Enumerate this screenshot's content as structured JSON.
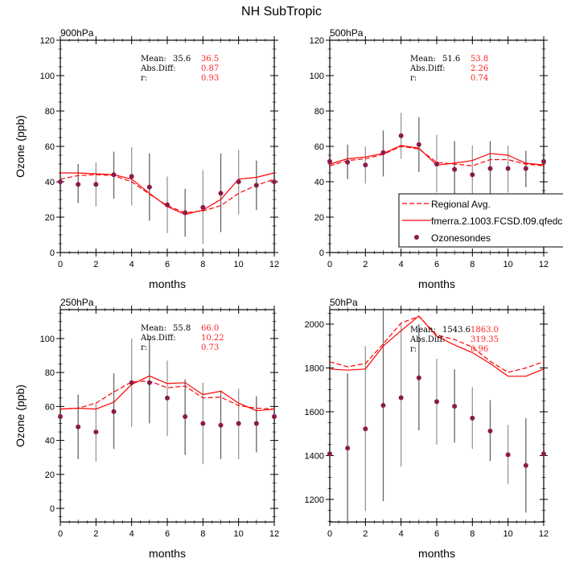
{
  "title": "NH SubTropic",
  "legend": {
    "entries": [
      "Regional Avg.",
      "fmerra.2.1003.FCSD.f09.qfedcmip",
      "Ozonesondes"
    ],
    "colors": {
      "regional": "#ff0000",
      "model": "#ff0000",
      "obs": "#8b1a4a",
      "errorbar": "#777777"
    }
  },
  "stats_labels": {
    "mean": "Mean:",
    "absdiff": "Abs.Diff:",
    "r": "r:"
  },
  "chart_data": [
    {
      "type": "line",
      "title": "900hPa",
      "xlabel": "months",
      "ylabel": "Ozone (ppb)",
      "xlim": [
        0,
        12
      ],
      "ylim": [
        0,
        120
      ],
      "yticks": [
        0,
        20,
        40,
        60,
        80,
        100,
        120
      ],
      "xticks": [
        0,
        2,
        4,
        6,
        8,
        10,
        12
      ],
      "x": [
        0,
        1,
        2,
        3,
        4,
        5,
        6,
        7,
        8,
        9,
        10,
        11,
        12
      ],
      "stats": {
        "mean_obs": "35.6",
        "mean_model": "36.5",
        "absdiff": "0.87",
        "r": "0.93"
      },
      "series": [
        {
          "name": "Regional Avg.",
          "style": "dashed",
          "values": [
            41.5,
            43.5,
            44,
            43.5,
            40,
            33,
            26.5,
            22.5,
            23.5,
            26.5,
            33.5,
            38,
            41.5
          ]
        },
        {
          "name": "fmerra.2.1003.FCSD.f09.qfedcmip",
          "style": "solid",
          "values": [
            45,
            45,
            44.5,
            44,
            41.5,
            33.5,
            26,
            21.5,
            24,
            30,
            41.5,
            42.5,
            45
          ]
        },
        {
          "name": "Ozonesondes",
          "style": "markers",
          "values": [
            40,
            38.5,
            38.5,
            44,
            43,
            37,
            27,
            22.5,
            25.5,
            33.5,
            40,
            38,
            40
          ],
          "err_low": [
            null,
            28,
            26,
            30.5,
            26.5,
            18,
            11,
            9,
            5,
            11.5,
            21.5,
            24,
            null
          ],
          "err_high": [
            null,
            50,
            51,
            57,
            59.5,
            56,
            43,
            36,
            46.5,
            56,
            58,
            52,
            null
          ]
        }
      ]
    },
    {
      "type": "line",
      "title": "500hPa",
      "xlabel": "months",
      "ylabel": "",
      "xlim": [
        0,
        12
      ],
      "ylim": [
        0,
        120
      ],
      "yticks": [
        0,
        20,
        40,
        60,
        80,
        100,
        120
      ],
      "xticks": [
        0,
        2,
        4,
        6,
        8,
        10,
        12
      ],
      "x": [
        0,
        1,
        2,
        3,
        4,
        5,
        6,
        7,
        8,
        9,
        10,
        11,
        12
      ],
      "stats": {
        "mean_obs": "51.6",
        "mean_model": "53.8",
        "absdiff": "2.26",
        "r": "0.74"
      },
      "series": [
        {
          "name": "Regional Avg.",
          "style": "dashed",
          "values": [
            49,
            52,
            53,
            55.5,
            60,
            58.5,
            51,
            50,
            49,
            52.5,
            52.5,
            50,
            49
          ]
        },
        {
          "name": "fmerra.2.1003.FCSD.f09.qfedcmip",
          "style": "solid",
          "values": [
            50,
            53,
            54,
            56,
            60.5,
            59,
            49.5,
            50.5,
            52,
            56,
            55,
            50.5,
            49.5
          ]
        },
        {
          "name": "Ozonesondes",
          "style": "markers",
          "values": [
            51.5,
            51,
            49.5,
            56.5,
            66,
            61,
            50,
            47,
            44,
            47.5,
            47.5,
            47.5,
            51.5
          ],
          "err_low": [
            null,
            41.5,
            39,
            43,
            53,
            45.5,
            34,
            30,
            30,
            32,
            34,
            37,
            null
          ],
          "err_high": [
            null,
            61,
            60,
            69,
            79,
            76.5,
            66.5,
            63,
            60.5,
            63,
            60.5,
            57.5,
            null
          ]
        }
      ]
    },
    {
      "type": "line",
      "title": "250hPa",
      "xlabel": "months",
      "ylabel": "Ozone (ppb)",
      "xlim": [
        0,
        12
      ],
      "ylim": [
        -8,
        117
      ],
      "yticks": [
        0,
        20,
        40,
        60,
        80,
        100
      ],
      "xticks": [
        0,
        2,
        4,
        6,
        8,
        10,
        12
      ],
      "x": [
        0,
        1,
        2,
        3,
        4,
        5,
        6,
        7,
        8,
        9,
        10,
        11,
        12
      ],
      "stats": {
        "mean_obs": "55.8",
        "mean_model": "66.0",
        "absdiff": "10.22",
        "r": "0.73"
      },
      "series": [
        {
          "name": "Regional Avg.",
          "style": "dashed",
          "values": [
            58.5,
            59,
            62,
            68.5,
            74.5,
            75,
            71,
            72,
            65,
            65.5,
            60.5,
            59,
            58.5
          ]
        },
        {
          "name": "fmerra.2.1003.FCSD.f09.qfedcmip",
          "style": "solid",
          "values": [
            58.5,
            59,
            58.5,
            62.5,
            73,
            78,
            73.5,
            74,
            67,
            69,
            62,
            57.5,
            58.5
          ]
        },
        {
          "name": "Ozonesondes",
          "style": "markers",
          "values": [
            54,
            48,
            45,
            57,
            74,
            74,
            65,
            54,
            50,
            49,
            50,
            50,
            54
          ],
          "err_low": [
            null,
            29,
            27.5,
            35,
            48,
            50,
            42.5,
            31.5,
            26,
            29,
            29,
            33,
            null
          ],
          "err_high": [
            null,
            67,
            62,
            79.5,
            100,
            100,
            87,
            76,
            74,
            69.5,
            70.5,
            66,
            null
          ]
        }
      ]
    },
    {
      "type": "line",
      "title": "50hPa",
      "xlabel": "months",
      "ylabel": "",
      "xlim": [
        0,
        12
      ],
      "ylim": [
        1097,
        2066
      ],
      "yticks": [
        1200,
        1400,
        1600,
        1800,
        2000
      ],
      "xticks": [
        0,
        2,
        4,
        6,
        8,
        10,
        12
      ],
      "x": [
        0,
        1,
        2,
        3,
        4,
        5,
        6,
        7,
        8,
        9,
        10,
        11,
        12
      ],
      "stats": {
        "mean_obs": "1543.6",
        "mean_model": "1863.0",
        "absdiff": "319.35",
        "r": "0.96"
      },
      "series": [
        {
          "name": "Regional Avg.",
          "style": "dashed",
          "values": [
            1828,
            1805,
            1820,
            1910,
            2005,
            2035,
            1950,
            1930,
            1895,
            1830,
            1780,
            1800,
            1828
          ]
        },
        {
          "name": "fmerra.2.1003.FCSD.f09.qfedcmip",
          "style": "solid",
          "values": [
            1795,
            1790,
            1795,
            1900,
            1970,
            2037,
            1945,
            1905,
            1870,
            1820,
            1762,
            1762,
            1795
          ]
        },
        {
          "name": "Ozonesondes",
          "style": "markers",
          "values": [
            1408,
            1434,
            1522,
            1629,
            1664,
            1755,
            1646,
            1625,
            1571,
            1512,
            1404,
            1355,
            1408
          ],
          "err_low": [
            null,
            1097,
            1147,
            1192,
            1350,
            1515,
            1450,
            1460,
            1430,
            1375,
            1270,
            1140,
            null
          ],
          "err_high": [
            null,
            1775,
            1900,
            2066,
            2000,
            2000,
            1842,
            1793,
            1712,
            1653,
            1540,
            1570,
            null
          ]
        }
      ]
    }
  ]
}
